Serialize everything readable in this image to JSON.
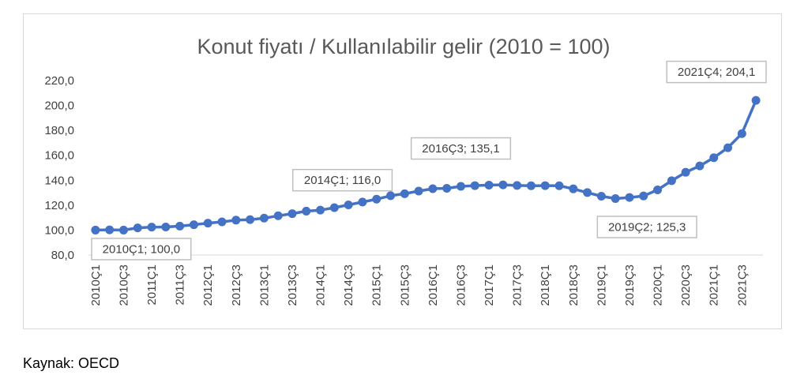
{
  "source": "Kaynak: OECD",
  "chart_data": {
    "type": "line",
    "title": "Konut fiyatı / Kullanılabilir gelir (2010 = 100)",
    "xlabel": "",
    "ylabel": "",
    "ylim": [
      80,
      220
    ],
    "yticks": [
      "80,0",
      "100,0",
      "120,0",
      "140,0",
      "160,0",
      "180,0",
      "200,0",
      "220,0"
    ],
    "grid": false,
    "legend": "none",
    "color": "#4472c4",
    "x": [
      "2010Ç1",
      "2010Ç2",
      "2010Ç3",
      "2010Ç4",
      "2011Ç1",
      "2011Ç2",
      "2011Ç3",
      "2011Ç4",
      "2012Ç1",
      "2012Ç2",
      "2012Ç3",
      "2012Ç4",
      "2013Ç1",
      "2013Ç2",
      "2013Ç3",
      "2013Ç4",
      "2014Ç1",
      "2014Ç2",
      "2014Ç3",
      "2014Ç4",
      "2015Ç1",
      "2015Ç2",
      "2015Ç3",
      "2015Ç4",
      "2016Ç1",
      "2016Ç2",
      "2016Ç3",
      "2016Ç4",
      "2017Ç1",
      "2017Ç2",
      "2017Ç3",
      "2017Ç4",
      "2018Ç1",
      "2018Ç2",
      "2018Ç3",
      "2018Ç4",
      "2019Ç1",
      "2019Ç2",
      "2019Ç3",
      "2019Ç4",
      "2020Ç1",
      "2020Ç2",
      "2020Ç3",
      "2020Ç4",
      "2021Ç1",
      "2021Ç2",
      "2021Ç3",
      "2021Ç4"
    ],
    "x_tick_labels": [
      "2010Ç1",
      "2010Ç3",
      "2011Ç1",
      "2011Ç3",
      "2012Ç1",
      "2012Ç3",
      "2013Ç1",
      "2013Ç3",
      "2014Ç1",
      "2014Ç3",
      "2015Ç1",
      "2015Ç3",
      "2016Ç1",
      "2016Ç3",
      "2017Ç1",
      "2017Ç3",
      "2018Ç1",
      "2018Ç3",
      "2019Ç1",
      "2019Ç3",
      "2020Ç1",
      "2020Ç3",
      "2021Ç1",
      "2021Ç3"
    ],
    "values": [
      100.0,
      100.2,
      100.0,
      101.8,
      102.4,
      102.5,
      103.2,
      104.3,
      105.6,
      106.6,
      108.0,
      108.4,
      109.6,
      111.5,
      113.2,
      115.2,
      116.0,
      118.0,
      120.2,
      122.5,
      124.8,
      127.6,
      129.2,
      131.3,
      133.2,
      133.5,
      135.1,
      135.7,
      136.1,
      136.3,
      135.8,
      135.6,
      135.7,
      135.6,
      133.1,
      130.1,
      127.2,
      125.3,
      126.2,
      127.4,
      132.3,
      139.6,
      146.4,
      151.5,
      158.1,
      166.1,
      177.4,
      204.1
    ],
    "data_labels": [
      {
        "x": "2010Ç1",
        "text": "2010Ç1; 100,0"
      },
      {
        "x": "2014Ç1",
        "text": "2014Ç1; 116,0"
      },
      {
        "x": "2016Ç3",
        "text": "2016Ç3; 135,1"
      },
      {
        "x": "2019Ç2",
        "text": "2019Ç2; 125,3"
      },
      {
        "x": "2021Ç4",
        "text": "2021Ç4; 204,1"
      }
    ]
  }
}
